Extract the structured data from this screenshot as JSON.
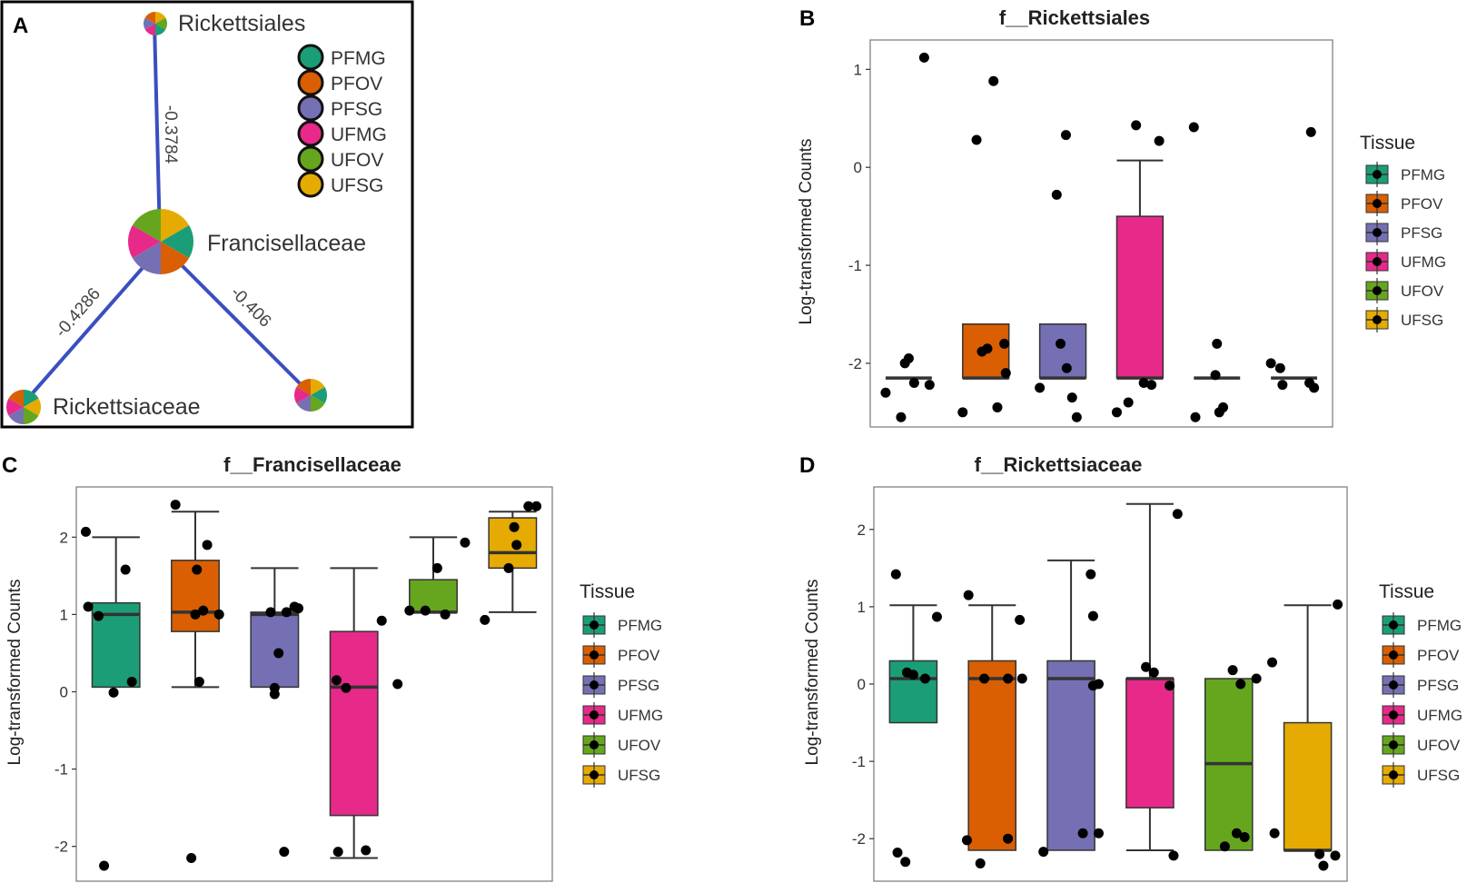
{
  "colors": {
    "PFMG": "#1b9e77",
    "PFOV": "#d95f02",
    "PFSG": "#7570b3",
    "UFMG": "#e7298a",
    "UFOV": "#66a61e",
    "UFSG": "#e6ab02",
    "edge": "#3a4fbf",
    "frame": "#000000"
  },
  "panel_letters": [
    "A",
    "B",
    "C",
    "D"
  ],
  "network": {
    "nodes": [
      {
        "id": "rickettsiales",
        "label": "Rickettsiales"
      },
      {
        "id": "francisellaceae",
        "label": "Francisellaceae"
      },
      {
        "id": "rickettsiaceae",
        "label": "Rickettsiaceae"
      },
      {
        "id": "unlabeled",
        "label": ""
      }
    ],
    "edges": [
      {
        "from": "francisellaceae",
        "to": "rickettsiales",
        "weight": "-0.3784"
      },
      {
        "from": "francisellaceae",
        "to": "rickettsiaceae",
        "weight": "-0.4286"
      },
      {
        "from": "francisellaceae",
        "to": "unlabeled",
        "weight": "-0.406"
      }
    ],
    "legend": [
      "PFMG",
      "PFOV",
      "PFSG",
      "UFMG",
      "UFOV",
      "UFSG"
    ]
  },
  "chart_data": [
    {
      "panel": "B",
      "type": "box",
      "title": "f__Rickettsiales",
      "xlabel": "",
      "ylabel": "Log-transformed Counts",
      "legend_title": "Tissue",
      "categories": [
        "PFMG",
        "PFOV",
        "PFSG",
        "UFMG",
        "UFOV",
        "UFSG"
      ],
      "yticks": [
        1,
        0,
        -1,
        -2
      ],
      "ylim": [
        -2.65,
        1.3
      ],
      "boxes": [
        {
          "q1": -2.15,
          "median": -2.15,
          "q3": -2.15,
          "lo": -2.15,
          "hi": -2.15
        },
        {
          "q1": -2.15,
          "median": -2.15,
          "q3": -1.6,
          "lo": -2.15,
          "hi": -1.6
        },
        {
          "q1": -2.15,
          "median": -2.15,
          "q3": -1.6,
          "lo": -2.15,
          "hi": -1.6
        },
        {
          "q1": -2.15,
          "median": -2.15,
          "q3": -0.5,
          "lo": -2.15,
          "hi": 0.07
        },
        {
          "q1": -2.15,
          "median": -2.15,
          "q3": -2.15,
          "lo": -2.15,
          "hi": -2.15
        },
        {
          "q1": -2.15,
          "median": -2.15,
          "q3": -2.15,
          "lo": -2.15,
          "hi": -2.15
        }
      ],
      "points": [
        [
          [
            -2.3,
            -0.3
          ],
          [
            -2.55,
            -0.1
          ],
          [
            -2.0,
            -0.05
          ],
          [
            -1.95,
            0.0
          ],
          [
            -2.2,
            0.07
          ],
          [
            1.12,
            0.2
          ],
          [
            -2.22,
            0.27
          ]
        ],
        [
          [
            -2.5,
            -0.3
          ],
          [
            0.28,
            -0.12
          ],
          [
            -1.88,
            -0.05
          ],
          [
            -1.85,
            0.02
          ],
          [
            0.88,
            0.1
          ],
          [
            -2.45,
            0.15
          ],
          [
            -1.8,
            0.24
          ],
          [
            -2.1,
            0.26
          ]
        ],
        [
          [
            -2.25,
            -0.3
          ],
          [
            -0.28,
            -0.08
          ],
          [
            -1.8,
            -0.03
          ],
          [
            0.33,
            0.04
          ],
          [
            -2.05,
            0.05
          ],
          [
            -2.35,
            0.12
          ],
          [
            -2.55,
            0.18
          ]
        ],
        [
          [
            -2.5,
            -0.3
          ],
          [
            -2.4,
            -0.15
          ],
          [
            0.43,
            -0.05
          ],
          [
            -2.2,
            0.05
          ],
          [
            -2.22,
            0.15
          ],
          [
            0.27,
            0.25
          ]
        ],
        [
          [
            0.41,
            -0.3
          ],
          [
            -2.55,
            -0.28
          ],
          [
            -2.12,
            -0.02
          ],
          [
            -1.8,
            0.0
          ],
          [
            -2.5,
            0.03
          ],
          [
            -2.45,
            0.08
          ]
        ],
        [
          [
            -2.0,
            -0.3
          ],
          [
            -2.05,
            -0.18
          ],
          [
            -2.22,
            -0.15
          ],
          [
            0.36,
            0.22
          ],
          [
            -2.2,
            0.2
          ],
          [
            -2.25,
            0.26
          ]
        ]
      ]
    },
    {
      "panel": "C",
      "type": "box",
      "title": "f__Francisellaceae",
      "xlabel": "",
      "ylabel": "Log-transformed Counts",
      "legend_title": "Tissue",
      "categories": [
        "PFMG",
        "PFOV",
        "PFSG",
        "UFMG",
        "UFOV",
        "UFSG"
      ],
      "yticks": [
        2,
        1,
        0,
        -1,
        -2
      ],
      "ylim": [
        -2.45,
        2.65
      ],
      "boxes": [
        {
          "q1": 0.06,
          "median": 1.0,
          "q3": 1.15,
          "lo": 0.06,
          "hi": 2.0
        },
        {
          "q1": 0.78,
          "median": 1.03,
          "q3": 1.7,
          "lo": 0.06,
          "hi": 2.33
        },
        {
          "q1": 0.06,
          "median": 1.0,
          "q3": 1.03,
          "lo": 0.06,
          "hi": 1.6
        },
        {
          "q1": -1.6,
          "median": 0.06,
          "q3": 0.78,
          "lo": -2.15,
          "hi": 1.6
        },
        {
          "q1": 1.03,
          "median": 1.03,
          "q3": 1.45,
          "lo": 1.03,
          "hi": 2.0
        },
        {
          "q1": 1.6,
          "median": 1.8,
          "q3": 2.25,
          "lo": 1.03,
          "hi": 2.33
        }
      ],
      "points": [
        [
          [
            2.07,
            -0.38
          ],
          [
            1.1,
            -0.35
          ],
          [
            0.98,
            -0.22
          ],
          [
            -2.25,
            -0.15
          ],
          [
            -0.01,
            -0.03
          ],
          [
            1.58,
            0.12
          ],
          [
            0.13,
            0.2
          ]
        ],
        [
          [
            2.42,
            -0.25
          ],
          [
            -2.15,
            -0.05
          ],
          [
            1.0,
            0.0
          ],
          [
            1.58,
            0.02
          ],
          [
            1.05,
            0.1
          ],
          [
            0.13,
            0.05
          ],
          [
            1.9,
            0.15
          ],
          [
            1.0,
            0.3
          ]
        ],
        [
          [
            1.03,
            -0.05
          ],
          [
            -2.07,
            0.12
          ],
          [
            1.03,
            0.15
          ],
          [
            0.05,
            0.0
          ],
          [
            -0.03,
            0.0
          ],
          [
            0.5,
            0.05
          ],
          [
            1.08,
            0.3
          ],
          [
            1.1,
            0.25
          ]
        ],
        [
          [
            -2.07,
            -0.2
          ],
          [
            0.15,
            -0.22
          ],
          [
            0.05,
            -0.1
          ],
          [
            -2.05,
            0.15
          ],
          [
            0.92,
            0.35
          ]
        ],
        [
          [
            0.1,
            -0.45
          ],
          [
            1.05,
            -0.3
          ],
          [
            1.05,
            -0.1
          ],
          [
            1.6,
            0.05
          ],
          [
            1.0,
            0.15
          ],
          [
            1.93,
            0.4
          ]
        ],
        [
          [
            0.93,
            -0.35
          ],
          [
            1.6,
            -0.05
          ],
          [
            2.13,
            0.02
          ],
          [
            1.9,
            0.05
          ],
          [
            2.4,
            0.2
          ],
          [
            2.4,
            0.3
          ]
        ]
      ]
    },
    {
      "panel": "D",
      "type": "box",
      "title": "f__Rickettsiaceae",
      "xlabel": "",
      "ylabel": "Log-transformed Counts",
      "legend_title": "Tissue",
      "categories": [
        "PFMG",
        "PFOV",
        "PFSG",
        "UFMG",
        "UFOV",
        "UFSG"
      ],
      "yticks": [
        2,
        1,
        0,
        -1,
        -2
      ],
      "ylim": [
        -2.55,
        2.55
      ],
      "boxes": [
        {
          "q1": -0.5,
          "median": 0.07,
          "q3": 0.3,
          "lo": -0.5,
          "hi": 1.02
        },
        {
          "q1": -2.15,
          "median": 0.07,
          "q3": 0.3,
          "lo": -2.15,
          "hi": 1.02
        },
        {
          "q1": -2.15,
          "median": 0.07,
          "q3": 0.3,
          "lo": -2.15,
          "hi": 1.6
        },
        {
          "q1": -1.6,
          "median": 0.07,
          "q3": 0.07,
          "lo": -2.15,
          "hi": 2.33
        },
        {
          "q1": -2.15,
          "median": -1.03,
          "q3": 0.07,
          "lo": -2.15,
          "hi": 0.07
        },
        {
          "q1": -2.15,
          "median": -2.15,
          "q3": -0.5,
          "lo": -2.15,
          "hi": 1.02
        }
      ],
      "points": [
        [
          [
            1.42,
            -0.22
          ],
          [
            -2.18,
            -0.2
          ],
          [
            -2.3,
            -0.1
          ],
          [
            0.15,
            -0.08
          ],
          [
            0.12,
            0.0
          ],
          [
            0.07,
            0.15
          ],
          [
            0.87,
            0.3
          ]
        ],
        [
          [
            1.15,
            -0.3
          ],
          [
            -2.02,
            -0.32
          ],
          [
            0.07,
            -0.1
          ],
          [
            -2.32,
            -0.15
          ],
          [
            0.07,
            0.2
          ],
          [
            0.07,
            0.38
          ],
          [
            -2.0,
            0.2
          ],
          [
            0.83,
            0.35
          ]
        ],
        [
          [
            -2.17,
            -0.35
          ],
          [
            1.42,
            0.25
          ],
          [
            0.88,
            0.28
          ],
          [
            -1.93,
            0.15
          ],
          [
            -1.93,
            0.35
          ],
          [
            -0.02,
            0.28
          ],
          [
            0.0,
            0.35
          ]
        ],
        [
          [
            0.22,
            -0.05
          ],
          [
            0.15,
            0.05
          ],
          [
            -0.02,
            0.25
          ],
          [
            -2.22,
            0.3
          ],
          [
            2.2,
            0.35
          ]
        ],
        [
          [
            0.18,
            0.05
          ],
          [
            0.07,
            0.35
          ],
          [
            -2.1,
            -0.05
          ],
          [
            -1.93,
            0.1
          ],
          [
            -1.98,
            0.2
          ],
          [
            0.0,
            0.15
          ]
        ],
        [
          [
            0.28,
            -0.45
          ],
          [
            -1.93,
            -0.42
          ],
          [
            -2.2,
            0.15
          ],
          [
            -2.35,
            0.2
          ],
          [
            -2.22,
            0.35
          ],
          [
            1.03,
            0.38
          ]
        ]
      ]
    }
  ]
}
